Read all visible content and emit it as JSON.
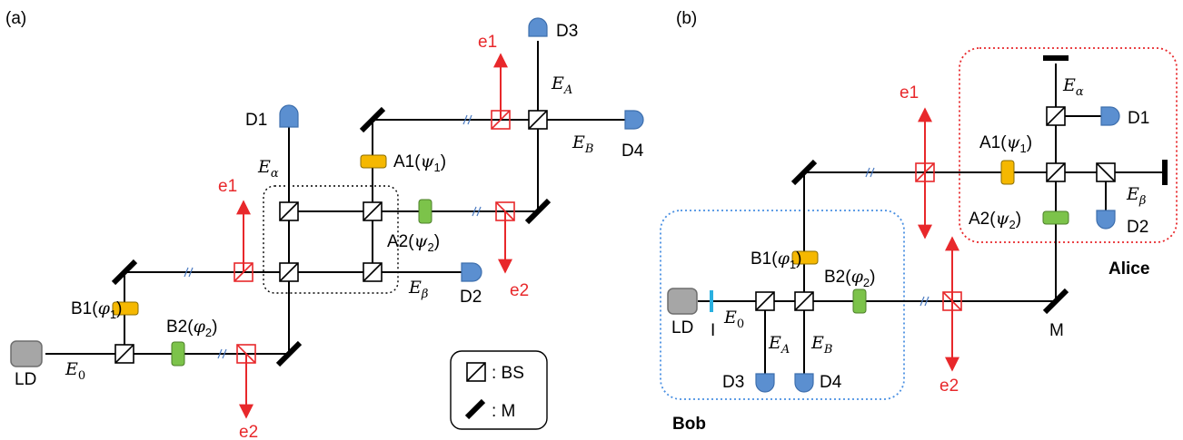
{
  "panel_a": {
    "panel_label": "(a)",
    "LD": "LD",
    "E0": "E",
    "E0_sub": "0",
    "E_alpha": "E",
    "E_alpha_sub": "α",
    "E_beta": "E",
    "E_beta_sub": "β",
    "E_A": "E",
    "E_A_sub": "A",
    "E_B": "E",
    "E_B_sub": "B",
    "B1": "B1(",
    "B1_phase": "φ",
    "B1_sub": "1",
    "B2": "B2(",
    "B2_phase": "φ",
    "B2_sub": "2",
    "A1": "A1(",
    "A1_phase": "ψ",
    "A1_sub": "1",
    "A2": "A2(",
    "A2_phase": "ψ",
    "A2_sub": "2",
    "close_paren": ")",
    "D1": "D1",
    "D2": "D2",
    "D3": "D3",
    "D4": "D4",
    "e1_left": "e1",
    "e2_bottom": "e2",
    "e2_mid": "e2",
    "e1_top": "e1"
  },
  "legend": {
    "bs_label": ": BS",
    "m_label": ": M"
  },
  "panel_b": {
    "panel_label": "(b)",
    "LD": "LD",
    "I": "I",
    "E0": "E",
    "E0_sub": "0",
    "E_A": "E",
    "E_A_sub": "A",
    "E_B": "E",
    "E_B_sub": "B",
    "E_alpha": "E",
    "E_alpha_sub": "α",
    "E_beta": "E",
    "E_beta_sub": "β",
    "B1": "B1(",
    "B1_phase": "φ",
    "B1_sub": "1",
    "B2": "B2(",
    "B2_phase": "φ",
    "B2_sub": "2",
    "A1": "A1(",
    "A1_phase": "ψ",
    "A1_sub": "1",
    "A2": "A2(",
    "A2_phase": "ψ",
    "A2_sub": "2",
    "close_paren": ")",
    "D1": "D1",
    "D2": "D2",
    "D3": "D3",
    "D4": "D4",
    "M": "M",
    "e1": "e1",
    "e2": "e2",
    "bob": "Bob",
    "alice": "Alice"
  },
  "colors": {
    "eve_red": "#e8282b",
    "detector_blue": "#5b8fd0",
    "phase_orange": "#f5b800",
    "phase_green": "#7cc34a",
    "bob_border": "#4a90e2",
    "alice_border": "#e8282b"
  }
}
